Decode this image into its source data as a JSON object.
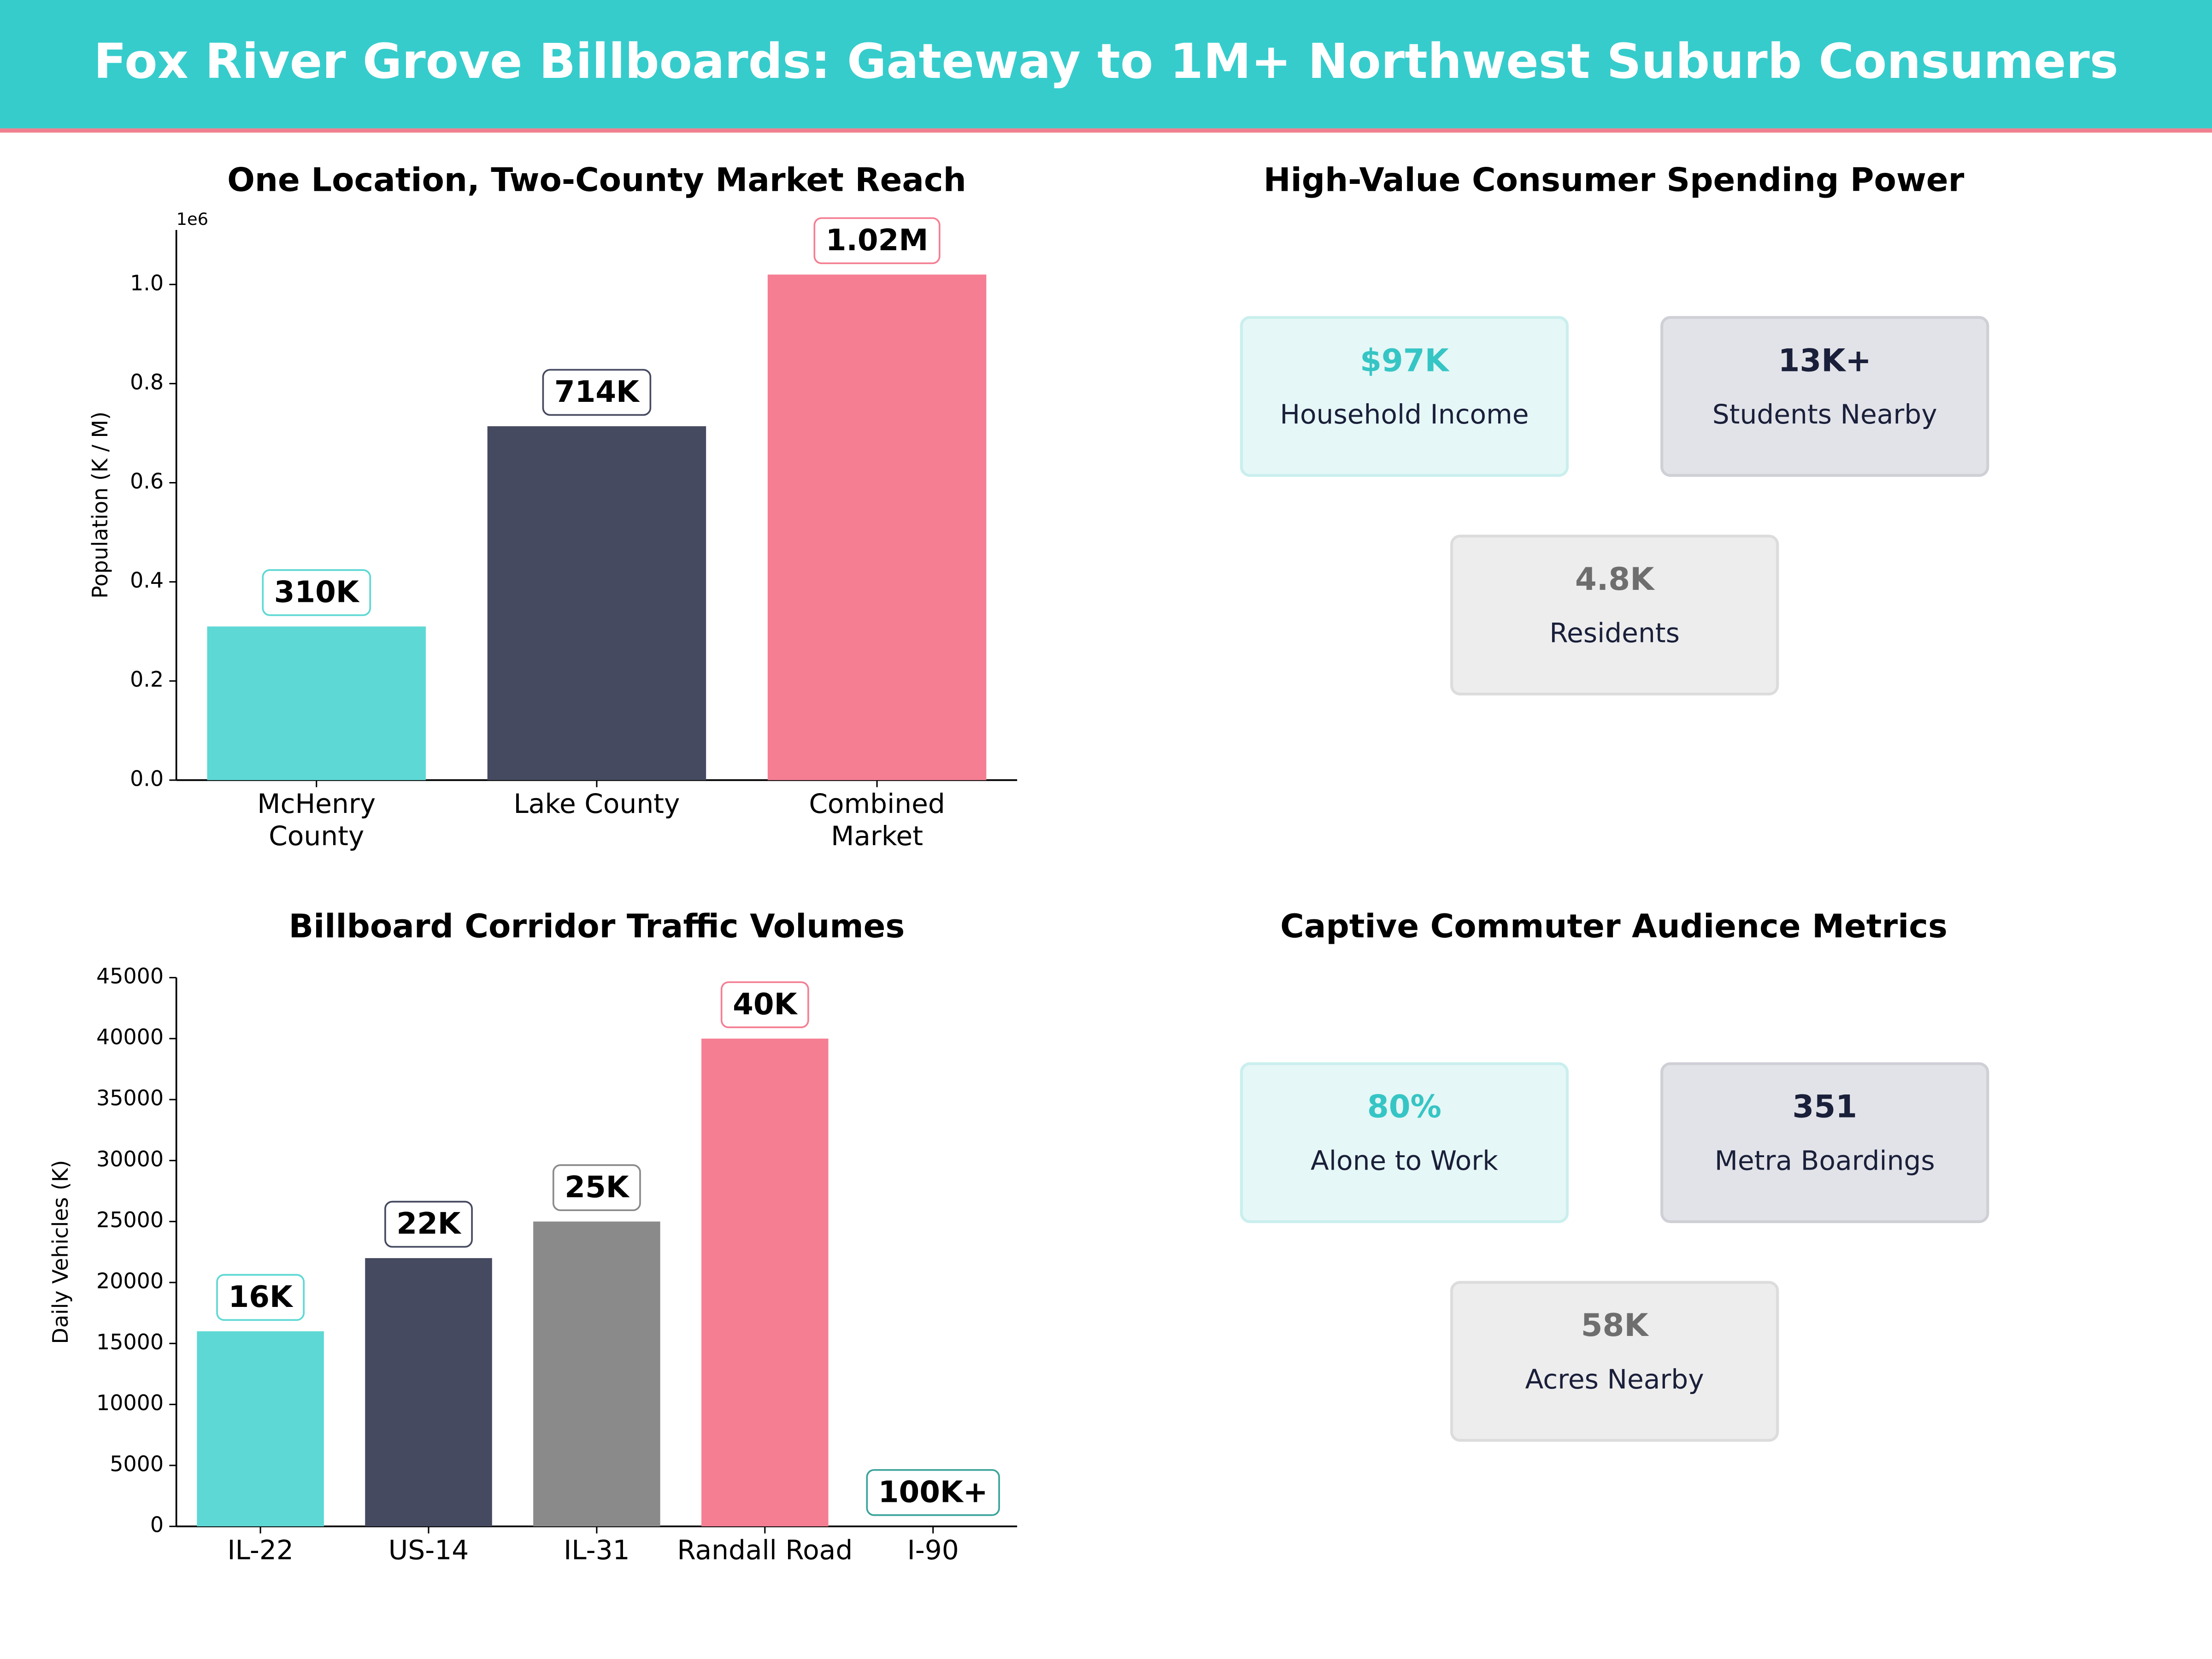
{
  "title": "Fox River Grove Billboards: Gateway to 1M+ Northwest Suburb Consumers",
  "chart_data": [
    {
      "type": "bar",
      "title": "One Location, Two-County Market Reach",
      "categories": [
        "McHenry\nCounty",
        "Lake County",
        "Combined\nMarket"
      ],
      "values": [
        310000,
        714000,
        1020000
      ],
      "value_labels": [
        "310K",
        "714K",
        "1.02M"
      ],
      "colors": [
        "#5dd8d4",
        "#464a60",
        "#f57e93"
      ],
      "ylabel": "Population (K / M)",
      "y_offset_label": "1e6",
      "ylim": [
        0,
        1110000
      ],
      "yticks": [
        {
          "value": 0,
          "label": "0.0"
        },
        {
          "value": 200000,
          "label": "0.2"
        },
        {
          "value": 400000,
          "label": "0.4"
        },
        {
          "value": 600000,
          "label": "0.6"
        },
        {
          "value": 800000,
          "label": "0.8"
        },
        {
          "value": 1000000,
          "label": "1.0"
        }
      ],
      "grid": false
    },
    {
      "type": "bar",
      "title": "Billboard Corridor Traffic Volumes",
      "categories": [
        "IL-22",
        "US-14",
        "IL-31",
        "Randall Road",
        "I-90"
      ],
      "values": [
        16000,
        22000,
        25000,
        40000,
        null
      ],
      "value_labels": [
        "16K",
        "22K",
        "25K",
        "40K",
        "100K+"
      ],
      "colors": [
        "#5dd8d4",
        "#464a60",
        "#8a8a8a",
        "#f57e93",
        "#3aa39a"
      ],
      "ylabel": "Daily Vehicles (K)",
      "ylim": [
        0,
        45000
      ],
      "yticks": [
        0,
        5000,
        10000,
        15000,
        20000,
        25000,
        30000,
        35000,
        40000,
        45000
      ],
      "grid": false
    }
  ],
  "kpi_panels": [
    {
      "title": "High-Value Consumer Spending Power",
      "cards": [
        {
          "value": "$97K",
          "label": "Household Income",
          "color": "#36c5c5",
          "background": "#e5f7f6",
          "border": "#c9efee"
        },
        {
          "value": "13K+",
          "label": "Students Nearby",
          "color": "#1a1f3a",
          "background": "#e2e3e8",
          "border": "#cfd0d6"
        },
        {
          "value": "4.8K",
          "label": "Residents",
          "color": "#6e6e6e",
          "background": "#ededed",
          "border": "#dcdcdc"
        }
      ]
    },
    {
      "title": "Captive Commuter Audience Metrics",
      "cards": [
        {
          "value": "80%",
          "label": "Alone to Work",
          "color": "#36c5c5",
          "background": "#e5f7f6",
          "border": "#c9efee"
        },
        {
          "value": "351",
          "label": "Metra Boardings",
          "color": "#1a1f3a",
          "background": "#e2e3e8",
          "border": "#cfd0d6"
        },
        {
          "value": "58K",
          "label": "Acres Nearby",
          "color": "#6e6e6e",
          "background": "#ededed",
          "border": "#dcdcdc"
        }
      ]
    }
  ]
}
